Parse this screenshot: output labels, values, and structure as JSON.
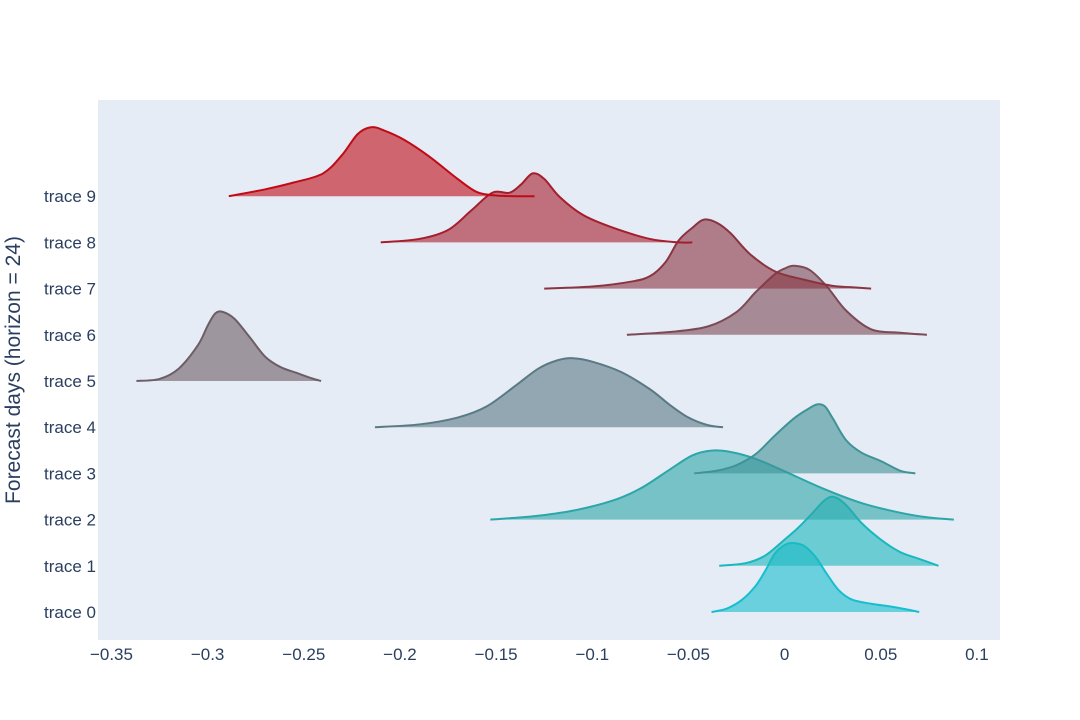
{
  "chart_data": {
    "type": "ridgeline",
    "title": "",
    "xlabel": "",
    "ylabel": "Forecast days (horizon = 24)",
    "xlim": [
      -0.357,
      0.112
    ],
    "x_ticks": [
      -0.35,
      -0.3,
      -0.25,
      -0.2,
      -0.15,
      -0.1,
      -0.05,
      0,
      0.05,
      0.1
    ],
    "x_tick_labels": [
      "−0.35",
      "−0.3",
      "−0.25",
      "−0.2",
      "−0.15",
      "−0.1",
      "−0.05",
      "0",
      "0.05",
      "0.1"
    ],
    "categories": [
      "trace 0",
      "trace 1",
      "trace 2",
      "trace 3",
      "trace 4",
      "trace 5",
      "trace 6",
      "trace 7",
      "trace 8",
      "trace 9"
    ],
    "grid": false,
    "legend": "none",
    "plot_background": "#e5ecf6",
    "series": [
      {
        "category": "trace 0",
        "color": "#17becf",
        "x": [
          -0.038,
          -0.03,
          -0.022,
          -0.015,
          -0.01,
          -0.005,
          0.0,
          0.004,
          0.01,
          0.016,
          0.022,
          0.028,
          0.035,
          0.045,
          0.055,
          0.063,
          0.07
        ],
        "y": [
          0.0,
          0.05,
          0.18,
          0.38,
          0.6,
          0.85,
          0.97,
          1.0,
          0.96,
          0.8,
          0.55,
          0.32,
          0.18,
          0.12,
          0.08,
          0.04,
          0.0
        ]
      },
      {
        "category": "trace 1",
        "color": "#1ab7bd",
        "x": [
          -0.034,
          -0.02,
          -0.01,
          0.0,
          0.007,
          0.014,
          0.02,
          0.024,
          0.028,
          0.033,
          0.04,
          0.05,
          0.06,
          0.07,
          0.08
        ],
        "y": [
          0.0,
          0.04,
          0.15,
          0.38,
          0.55,
          0.75,
          0.93,
          1.0,
          0.97,
          0.85,
          0.62,
          0.38,
          0.2,
          0.1,
          0.0
        ]
      },
      {
        "category": "trace 2",
        "color": "#2ca6a8",
        "x": [
          -0.153,
          -0.13,
          -0.11,
          -0.09,
          -0.075,
          -0.06,
          -0.048,
          -0.038,
          -0.028,
          -0.015,
          0.0,
          0.02,
          0.04,
          0.06,
          0.075,
          0.088
        ],
        "y": [
          0.0,
          0.05,
          0.13,
          0.27,
          0.45,
          0.72,
          0.93,
          1.0,
          0.98,
          0.88,
          0.7,
          0.45,
          0.24,
          0.1,
          0.03,
          0.0
        ]
      },
      {
        "category": "trace 3",
        "color": "#3f9396",
        "x": [
          -0.047,
          -0.035,
          -0.025,
          -0.015,
          -0.005,
          0.005,
          0.012,
          0.017,
          0.021,
          0.025,
          0.032,
          0.04,
          0.05,
          0.06,
          0.068
        ],
        "y": [
          0.0,
          0.04,
          0.12,
          0.28,
          0.55,
          0.8,
          0.93,
          1.0,
          0.97,
          0.8,
          0.48,
          0.3,
          0.18,
          0.04,
          0.0
        ]
      },
      {
        "category": "trace 4",
        "color": "#5a7a83",
        "x": [
          -0.213,
          -0.19,
          -0.17,
          -0.155,
          -0.14,
          -0.128,
          -0.118,
          -0.11,
          -0.1,
          -0.085,
          -0.07,
          -0.06,
          -0.05,
          -0.04,
          -0.032
        ],
        "y": [
          0.0,
          0.04,
          0.14,
          0.3,
          0.6,
          0.85,
          0.97,
          1.0,
          0.95,
          0.8,
          0.55,
          0.33,
          0.14,
          0.03,
          0.0
        ]
      },
      {
        "category": "trace 5",
        "color": "#6d5d66",
        "x": [
          -0.337,
          -0.325,
          -0.315,
          -0.305,
          -0.3,
          -0.296,
          -0.292,
          -0.286,
          -0.278,
          -0.27,
          -0.262,
          -0.254,
          -0.246,
          -0.241
        ],
        "y": [
          0.0,
          0.03,
          0.18,
          0.52,
          0.8,
          0.98,
          1.0,
          0.9,
          0.63,
          0.35,
          0.2,
          0.12,
          0.04,
          0.0
        ]
      },
      {
        "category": "trace 6",
        "color": "#7c4a55",
        "x": [
          -0.082,
          -0.06,
          -0.04,
          -0.025,
          -0.015,
          -0.005,
          0.0,
          0.005,
          0.013,
          0.022,
          0.032,
          0.045,
          0.06,
          0.074
        ],
        "y": [
          0.0,
          0.04,
          0.12,
          0.33,
          0.62,
          0.88,
          0.96,
          1.0,
          0.94,
          0.7,
          0.35,
          0.08,
          0.03,
          0.0
        ]
      },
      {
        "category": "trace 7",
        "color": "#8b3441",
        "x": [
          -0.125,
          -0.1,
          -0.08,
          -0.07,
          -0.062,
          -0.055,
          -0.048,
          -0.042,
          -0.035,
          -0.028,
          -0.018,
          -0.005,
          0.01,
          0.025,
          0.035,
          0.045
        ],
        "y": [
          0.0,
          0.03,
          0.1,
          0.18,
          0.38,
          0.7,
          0.88,
          1.0,
          0.95,
          0.8,
          0.5,
          0.25,
          0.13,
          0.04,
          0.02,
          0.0
        ]
      },
      {
        "category": "trace 8",
        "color": "#a51e2c",
        "x": [
          -0.21,
          -0.19,
          -0.175,
          -0.163,
          -0.152,
          -0.143,
          -0.137,
          -0.131,
          -0.125,
          -0.117,
          -0.105,
          -0.09,
          -0.07,
          -0.055,
          -0.048
        ],
        "y": [
          0.0,
          0.05,
          0.18,
          0.46,
          0.72,
          0.72,
          0.84,
          1.0,
          0.92,
          0.66,
          0.4,
          0.22,
          0.05,
          0.0,
          0.0
        ]
      },
      {
        "category": "trace 9",
        "color": "#c00b16",
        "x": [
          -0.289,
          -0.27,
          -0.255,
          -0.24,
          -0.23,
          -0.222,
          -0.215,
          -0.208,
          -0.198,
          -0.185,
          -0.17,
          -0.16,
          -0.15,
          -0.14,
          -0.13
        ],
        "y": [
          0.0,
          0.1,
          0.2,
          0.33,
          0.6,
          0.9,
          1.0,
          0.95,
          0.82,
          0.58,
          0.25,
          0.06,
          0.01,
          0.0,
          0.0
        ]
      }
    ]
  }
}
